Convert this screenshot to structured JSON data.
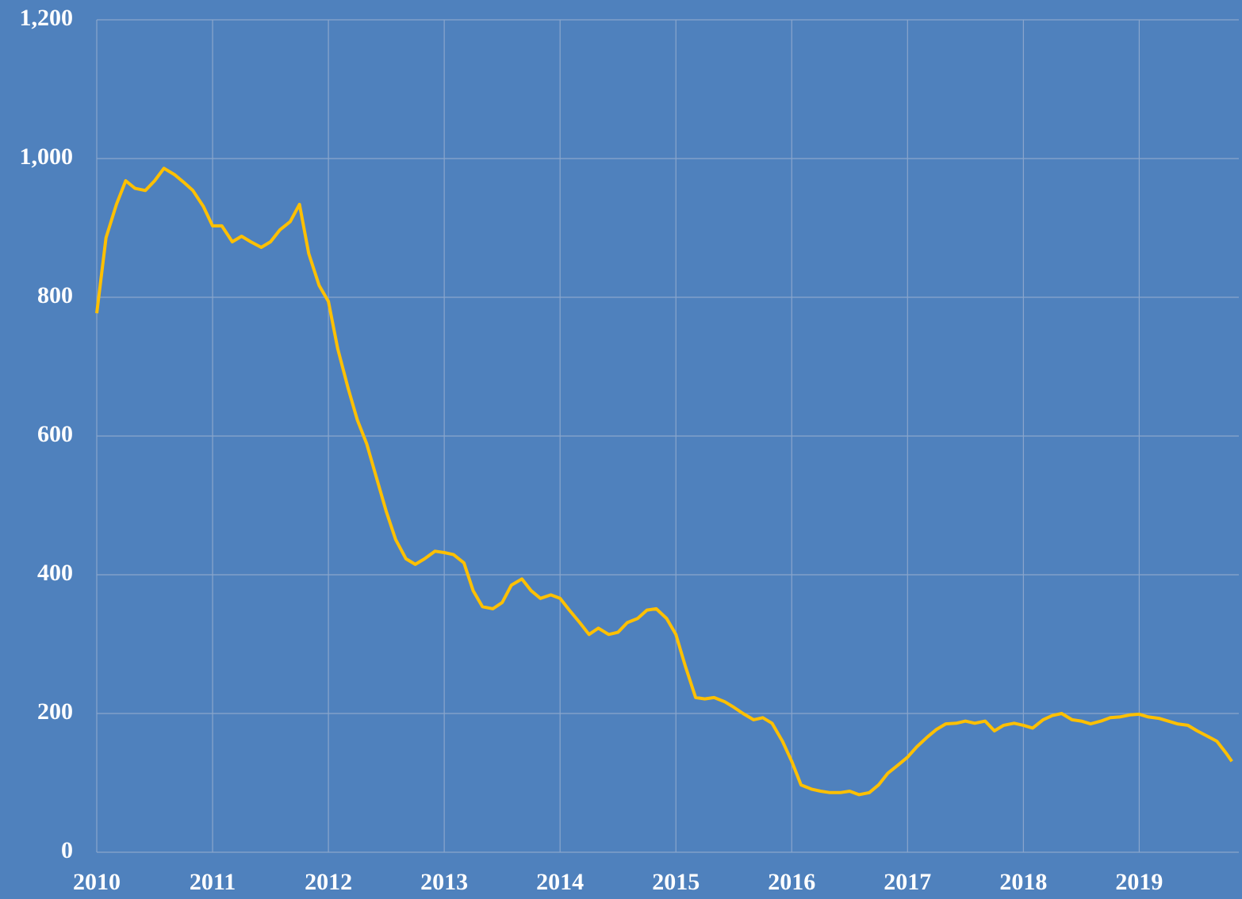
{
  "chart_data": {
    "type": "line",
    "x": [
      2010.0,
      2010.08,
      2010.17,
      2010.25,
      2010.33,
      2010.42,
      2010.5,
      2010.58,
      2010.67,
      2010.75,
      2010.83,
      2010.92,
      2011.0,
      2011.08,
      2011.17,
      2011.25,
      2011.33,
      2011.42,
      2011.5,
      2011.58,
      2011.67,
      2011.75,
      2011.83,
      2011.92,
      2012.0,
      2012.08,
      2012.17,
      2012.25,
      2012.33,
      2012.42,
      2012.5,
      2012.58,
      2012.67,
      2012.75,
      2012.83,
      2012.92,
      2013.0,
      2013.08,
      2013.17,
      2013.25,
      2013.33,
      2013.42,
      2013.5,
      2013.58,
      2013.67,
      2013.75,
      2013.83,
      2013.92,
      2014.0,
      2014.08,
      2014.17,
      2014.25,
      2014.33,
      2014.42,
      2014.5,
      2014.58,
      2014.67,
      2014.75,
      2014.83,
      2014.92,
      2015.0,
      2015.08,
      2015.17,
      2015.25,
      2015.33,
      2015.42,
      2015.5,
      2015.58,
      2015.67,
      2015.75,
      2015.83,
      2015.92,
      2016.0,
      2016.08,
      2016.17,
      2016.25,
      2016.33,
      2016.42,
      2016.5,
      2016.58,
      2016.67,
      2016.75,
      2016.83,
      2016.92,
      2017.0,
      2017.08,
      2017.17,
      2017.25,
      2017.33,
      2017.42,
      2017.5,
      2017.58,
      2017.67,
      2017.75,
      2017.83,
      2017.92,
      2018.0,
      2018.08,
      2018.17,
      2018.25,
      2018.33,
      2018.42,
      2018.5,
      2018.58,
      2018.67,
      2018.75,
      2018.83,
      2018.92,
      2019.0,
      2019.08,
      2019.17,
      2019.25,
      2019.33,
      2019.42,
      2019.5,
      2019.58,
      2019.67,
      2019.75,
      2019.8
    ],
    "series": [
      {
        "color": "#ffc000",
        "values": [
          777,
          886,
          934,
          968,
          957,
          954,
          968,
          986,
          977,
          966,
          954,
          931,
          903,
          903,
          880,
          888,
          880,
          872,
          880,
          897,
          909,
          934,
          863,
          817,
          794,
          726,
          669,
          623,
          589,
          537,
          491,
          451,
          423,
          415,
          423,
          434,
          432,
          429,
          417,
          377,
          354,
          351,
          360,
          385,
          394,
          377,
          366,
          371,
          366,
          349,
          331,
          314,
          323,
          314,
          317,
          331,
          337,
          349,
          351,
          337,
          314,
          269,
          223,
          221,
          223,
          217,
          209,
          200,
          191,
          194,
          186,
          160,
          131,
          97,
          91,
          88,
          86,
          86,
          88,
          83,
          86,
          97,
          114,
          126,
          137,
          152,
          166,
          177,
          185,
          186,
          189,
          186,
          189,
          175,
          183,
          186,
          183,
          179,
          191,
          197,
          200,
          191,
          189,
          185,
          189,
          194,
          195,
          198,
          199,
          195,
          193,
          189,
          185,
          183,
          175,
          168,
          160,
          143,
          131
        ]
      }
    ],
    "xlim": [
      2010,
      2019.86
    ],
    "xticks": [
      2010,
      2011,
      2012,
      2013,
      2014,
      2015,
      2016,
      2017,
      2018,
      2019
    ],
    "ylim": [
      0,
      1200
    ],
    "yticks": [
      0,
      200,
      400,
      600,
      800,
      {
        "value": 1000,
        "label": "1,000"
      },
      {
        "value": 1200,
        "label": "1,200"
      }
    ],
    "grid": true
  }
}
